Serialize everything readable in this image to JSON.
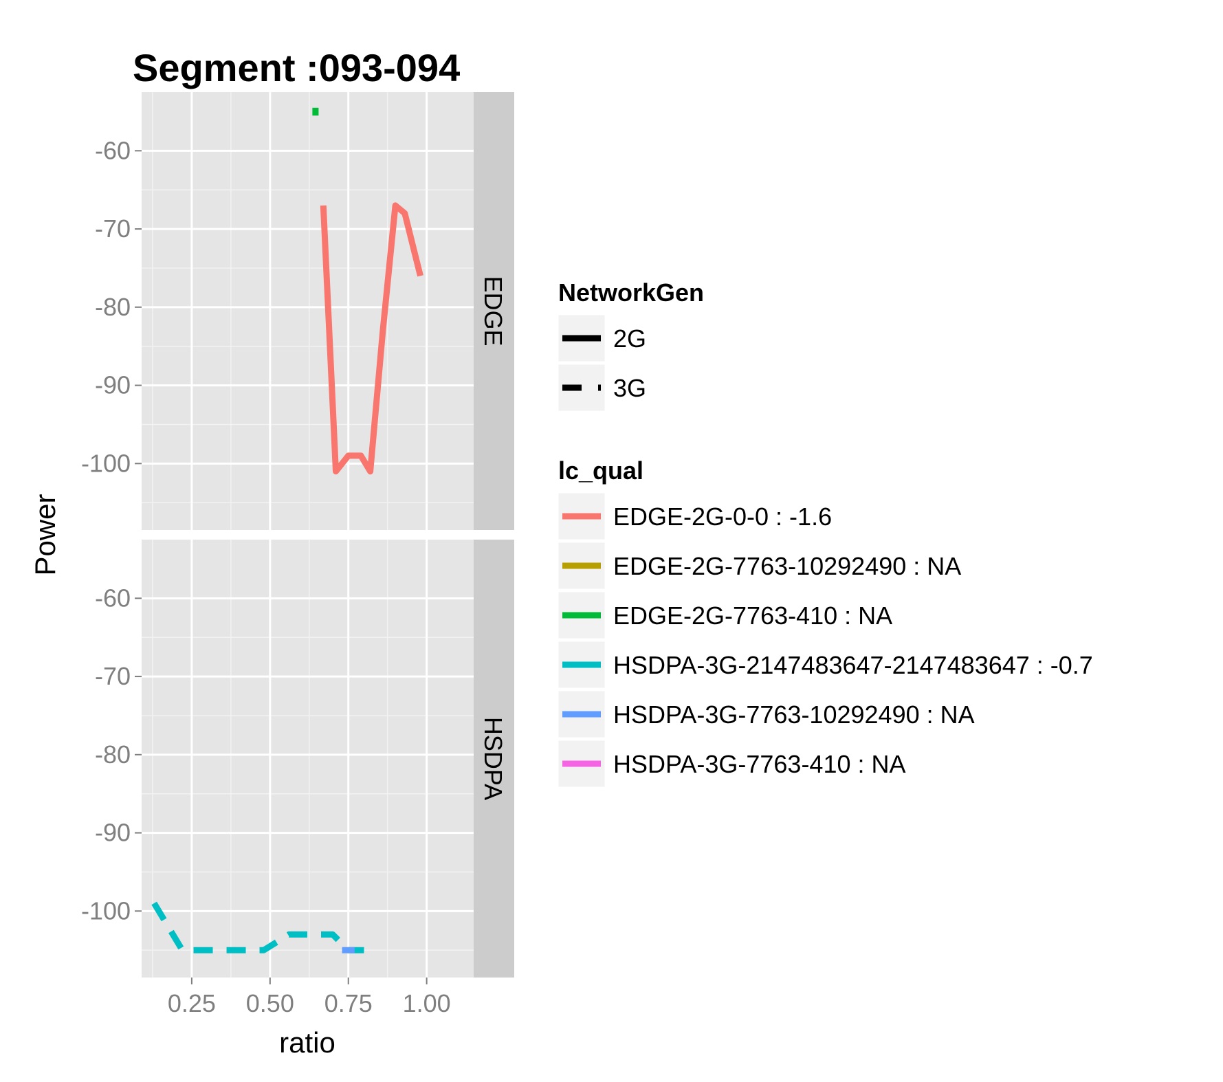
{
  "chart_data": {
    "type": "line",
    "title": "Segment :093-094",
    "xlabel": "ratio",
    "ylabel": "Power",
    "xlim": [
      0.09,
      1.15
    ],
    "ylim": [
      -108.5,
      -52.5
    ],
    "x_ticks": [
      0.25,
      0.5,
      0.75,
      1.0
    ],
    "x_tick_labels": [
      "0.25",
      "0.50",
      "0.75",
      "1.00"
    ],
    "y_ticks": [
      -100,
      -90,
      -80,
      -70,
      -60
    ],
    "y_tick_labels": [
      "-100",
      "-90",
      "-80",
      "-70",
      "-60"
    ],
    "grid": true,
    "facets": [
      {
        "label": "EDGE",
        "series": [
          {
            "name": "EDGE-2G-0-0 : -1.6",
            "color": "#F8766D",
            "linetype": "solid",
            "x": [
              0.67,
              0.71,
              0.75,
              0.79,
              0.82,
              0.86,
              0.9,
              0.93,
              0.98
            ],
            "y": [
              -67,
              -101,
              -99,
              -99,
              -101,
              -83,
              -67,
              -68,
              -76
            ]
          },
          {
            "name": "EDGE-2G-7763-410 : NA",
            "color": "#00BA38",
            "linetype": "solid",
            "x": [
              0.645,
              0.645
            ],
            "y": [
              -54.5,
              -55.5
            ]
          }
        ]
      },
      {
        "label": "HSDPA",
        "series": [
          {
            "name": "HSDPA-3G-2147483647-2147483647 : -0.7",
            "color": "#00BFC4",
            "linetype": "dashed",
            "x": [
              0.13,
              0.22,
              0.3,
              0.4,
              0.48,
              0.56,
              0.64,
              0.7,
              0.75,
              0.8
            ],
            "y": [
              -99,
              -105,
              -105,
              -105,
              -105,
              -103,
              -103,
              -103,
              -105,
              -105
            ]
          },
          {
            "name": "HSDPA-3G-7763-10292490 : NA",
            "color": "#619CFF",
            "linetype": "solid",
            "x": [
              0.73,
              0.77
            ],
            "y": [
              -105,
              -105
            ]
          }
        ]
      }
    ],
    "legend": [
      {
        "title": "NetworkGen",
        "items": [
          {
            "label": "2G",
            "linetype": "solid",
            "color": "#000000"
          },
          {
            "label": "3G",
            "linetype": "dashed",
            "color": "#000000"
          }
        ]
      },
      {
        "title": "lc_qual",
        "items": [
          {
            "label": "EDGE-2G-0-0 : -1.6",
            "color": "#F8766D"
          },
          {
            "label": "EDGE-2G-7763-10292490 : NA",
            "color": "#B79F00"
          },
          {
            "label": "EDGE-2G-7763-410 : NA",
            "color": "#00BA38"
          },
          {
            "label": "HSDPA-3G-2147483647-2147483647 : -0.7",
            "color": "#00BFC4"
          },
          {
            "label": "HSDPA-3G-7763-10292490 : NA",
            "color": "#619CFF"
          },
          {
            "label": "HSDPA-3G-7763-410 : NA",
            "color": "#F564E3"
          }
        ]
      }
    ]
  }
}
